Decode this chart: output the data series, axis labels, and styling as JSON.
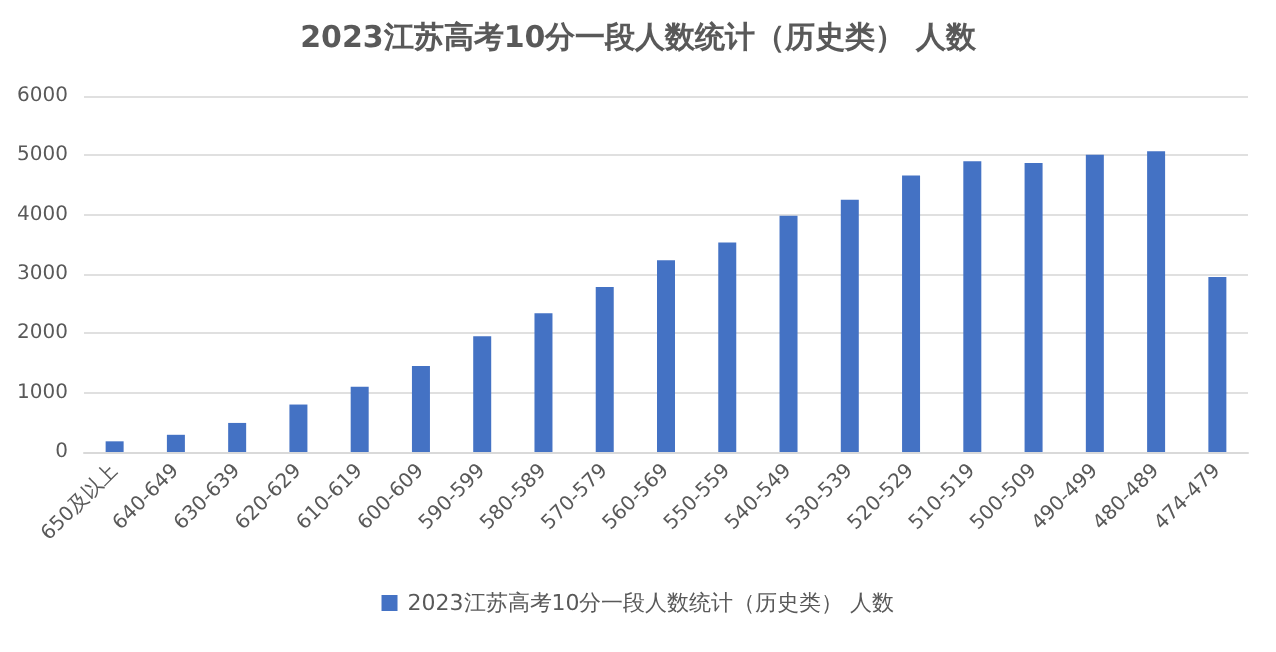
{
  "chart_data": {
    "type": "bar",
    "title": "2023江苏高考10分一段人数统计（历史类） 人数",
    "categories": [
      "650及以上",
      "640-649",
      "630-639",
      "620-629",
      "610-619",
      "600-609",
      "590-599",
      "580-589",
      "570-579",
      "560-569",
      "550-559",
      "540-549",
      "530-539",
      "520-529",
      "510-519",
      "500-509",
      "490-499",
      "480-489",
      "474-479"
    ],
    "series": [
      {
        "name": "2023江苏高考10分一段人数统计（历史类） 人数",
        "color": "#4472c4",
        "values": [
          180,
          290,
          490,
          800,
          1100,
          1450,
          1950,
          2340,
          2780,
          3230,
          3530,
          3980,
          4250,
          4660,
          4900,
          4870,
          5010,
          5070,
          2950
        ]
      }
    ],
    "ylim": [
      0,
      6000
    ],
    "yticks": [
      0,
      1000,
      2000,
      3000,
      4000,
      5000,
      6000
    ],
    "grid": "y",
    "legend": "bottom"
  }
}
